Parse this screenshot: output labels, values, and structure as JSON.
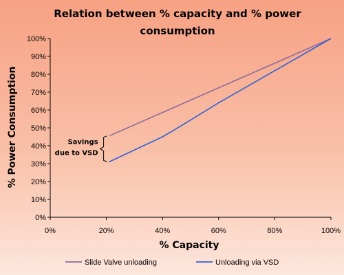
{
  "chart_data": {
    "type": "line",
    "title": "Relation between % capacity and % power consumption",
    "title_lines": [
      "Relation between % capacity and % power",
      "consumption"
    ],
    "xlabel": "% Capacity",
    "ylabel": "% Power Consumption",
    "xlim": [
      0,
      100
    ],
    "ylim": [
      0,
      100
    ],
    "x_ticks": [
      0,
      20,
      40,
      60,
      80,
      100
    ],
    "x_tick_labels": [
      "0%",
      "20%",
      "40%",
      "60%",
      "80%",
      "100%"
    ],
    "y_ticks": [
      0,
      10,
      20,
      30,
      40,
      50,
      60,
      70,
      80,
      90,
      100
    ],
    "y_tick_labels": [
      "0%",
      "10%",
      "20%",
      "30%",
      "40%",
      "50%",
      "60%",
      "70%",
      "80%",
      "90%",
      "100%"
    ],
    "grid": false,
    "legend_position": "bottom",
    "series": [
      {
        "name": "Slide Valve unloading",
        "color": "#8e6a9c",
        "x": [
          21,
          100
        ],
        "y": [
          45.5,
          100
        ]
      },
      {
        "name": "Unloading via VSD",
        "color": "#2f62d4",
        "x": [
          21,
          40,
          47,
          60,
          80,
          100
        ],
        "y": [
          31,
          45,
          51.5,
          64,
          82,
          100
        ]
      }
    ],
    "annotations": [
      {
        "text_lines": [
          "Savings",
          "due to VSD"
        ],
        "x": 20,
        "y_range": [
          31,
          45.5
        ]
      }
    ]
  }
}
